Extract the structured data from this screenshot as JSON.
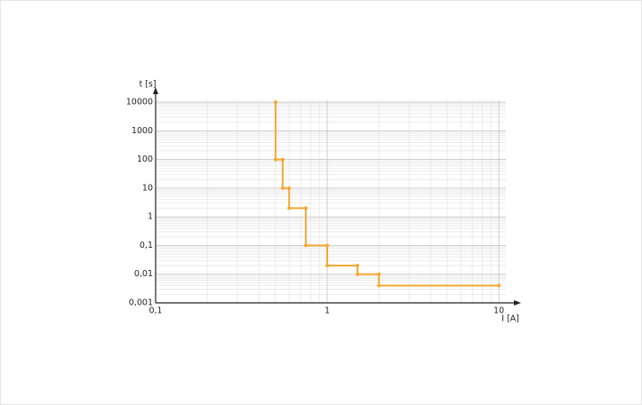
{
  "chart_data": {
    "type": "line",
    "y_label": "t [s]",
    "x_label": "I [A]",
    "log_x": true,
    "log_y": true,
    "grid": true,
    "xlim": [
      0.1,
      11
    ],
    "ylim": [
      0.001,
      10000
    ],
    "xticks": [
      {
        "value": 0.1,
        "label": "0,1"
      },
      1,
      10
    ],
    "yticks": [
      {
        "value": 0.001,
        "label": "0,001"
      },
      {
        "value": 0.01,
        "label": "0,01"
      },
      {
        "value": 0.1,
        "label": "0,1"
      },
      1,
      10,
      100,
      1000,
      10000
    ],
    "series": [
      {
        "color": "#f5a833",
        "x": [
          0.5,
          0.5,
          0.55,
          0.55,
          0.6,
          0.6,
          0.75,
          0.75,
          1,
          1,
          1.5,
          1.5,
          2,
          2,
          10
        ],
        "values": [
          10000,
          100,
          100,
          10,
          10,
          2,
          2,
          0.1,
          0.1,
          0.02,
          0.02,
          0.01,
          0.01,
          0.004,
          0.004
        ]
      }
    ]
  }
}
